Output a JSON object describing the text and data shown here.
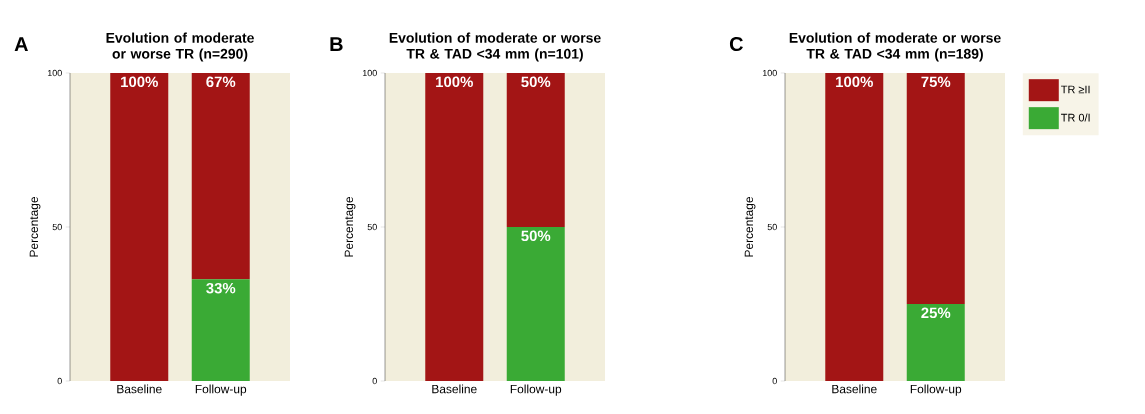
{
  "chart_data": [
    {
      "type": "bar",
      "title": "Evolution of moderate or worse TR (n=290)",
      "annotations": [
        "A"
      ],
      "ylabel": "Percentage",
      "categories": [
        "Baseline",
        "Follow-up"
      ],
      "stacked": true,
      "ylim": [
        0,
        100
      ],
      "yticks": [
        0,
        50,
        100
      ],
      "legend": false,
      "series": [
        {
          "color": "#3aaa35",
          "values": [
            0,
            33
          ],
          "value_labels": [
            null,
            "33%"
          ]
        },
        {
          "color": "#a31515",
          "values": [
            100,
            67
          ],
          "value_labels": [
            "100%",
            "67%"
          ]
        }
      ]
    },
    {
      "type": "bar",
      "title": "Evolution of moderate or worse TR & TAD <34 mm (n=101)",
      "annotations": [
        "B"
      ],
      "ylabel": "Percentage",
      "categories": [
        "Baseline",
        "Follow-up"
      ],
      "stacked": true,
      "ylim": [
        0,
        100
      ],
      "yticks": [
        0,
        50,
        100
      ],
      "legend": false,
      "series": [
        {
          "color": "#3aaa35",
          "values": [
            0,
            50
          ],
          "value_labels": [
            null,
            "50%"
          ]
        },
        {
          "color": "#a31515",
          "values": [
            100,
            50
          ],
          "value_labels": [
            "100%",
            "50%"
          ]
        }
      ]
    },
    {
      "type": "bar",
      "title": "Evolution of moderate or worse TR & TAD <34 mm (n=189)",
      "annotations": [
        "C"
      ],
      "ylabel": "Percentage",
      "categories": [
        "Baseline",
        "Follow-up"
      ],
      "stacked": true,
      "ylim": [
        0,
        100
      ],
      "yticks": [
        0,
        50,
        100
      ],
      "legend": "right",
      "series": [
        {
          "name": "TR 0/I",
          "color": "#3aaa35",
          "values": [
            0,
            25
          ],
          "value_labels": [
            null,
            "25%"
          ]
        },
        {
          "name": "TR ≥II",
          "color": "#a31515",
          "values": [
            100,
            75
          ],
          "value_labels": [
            "100%",
            "75%"
          ]
        }
      ]
    }
  ]
}
